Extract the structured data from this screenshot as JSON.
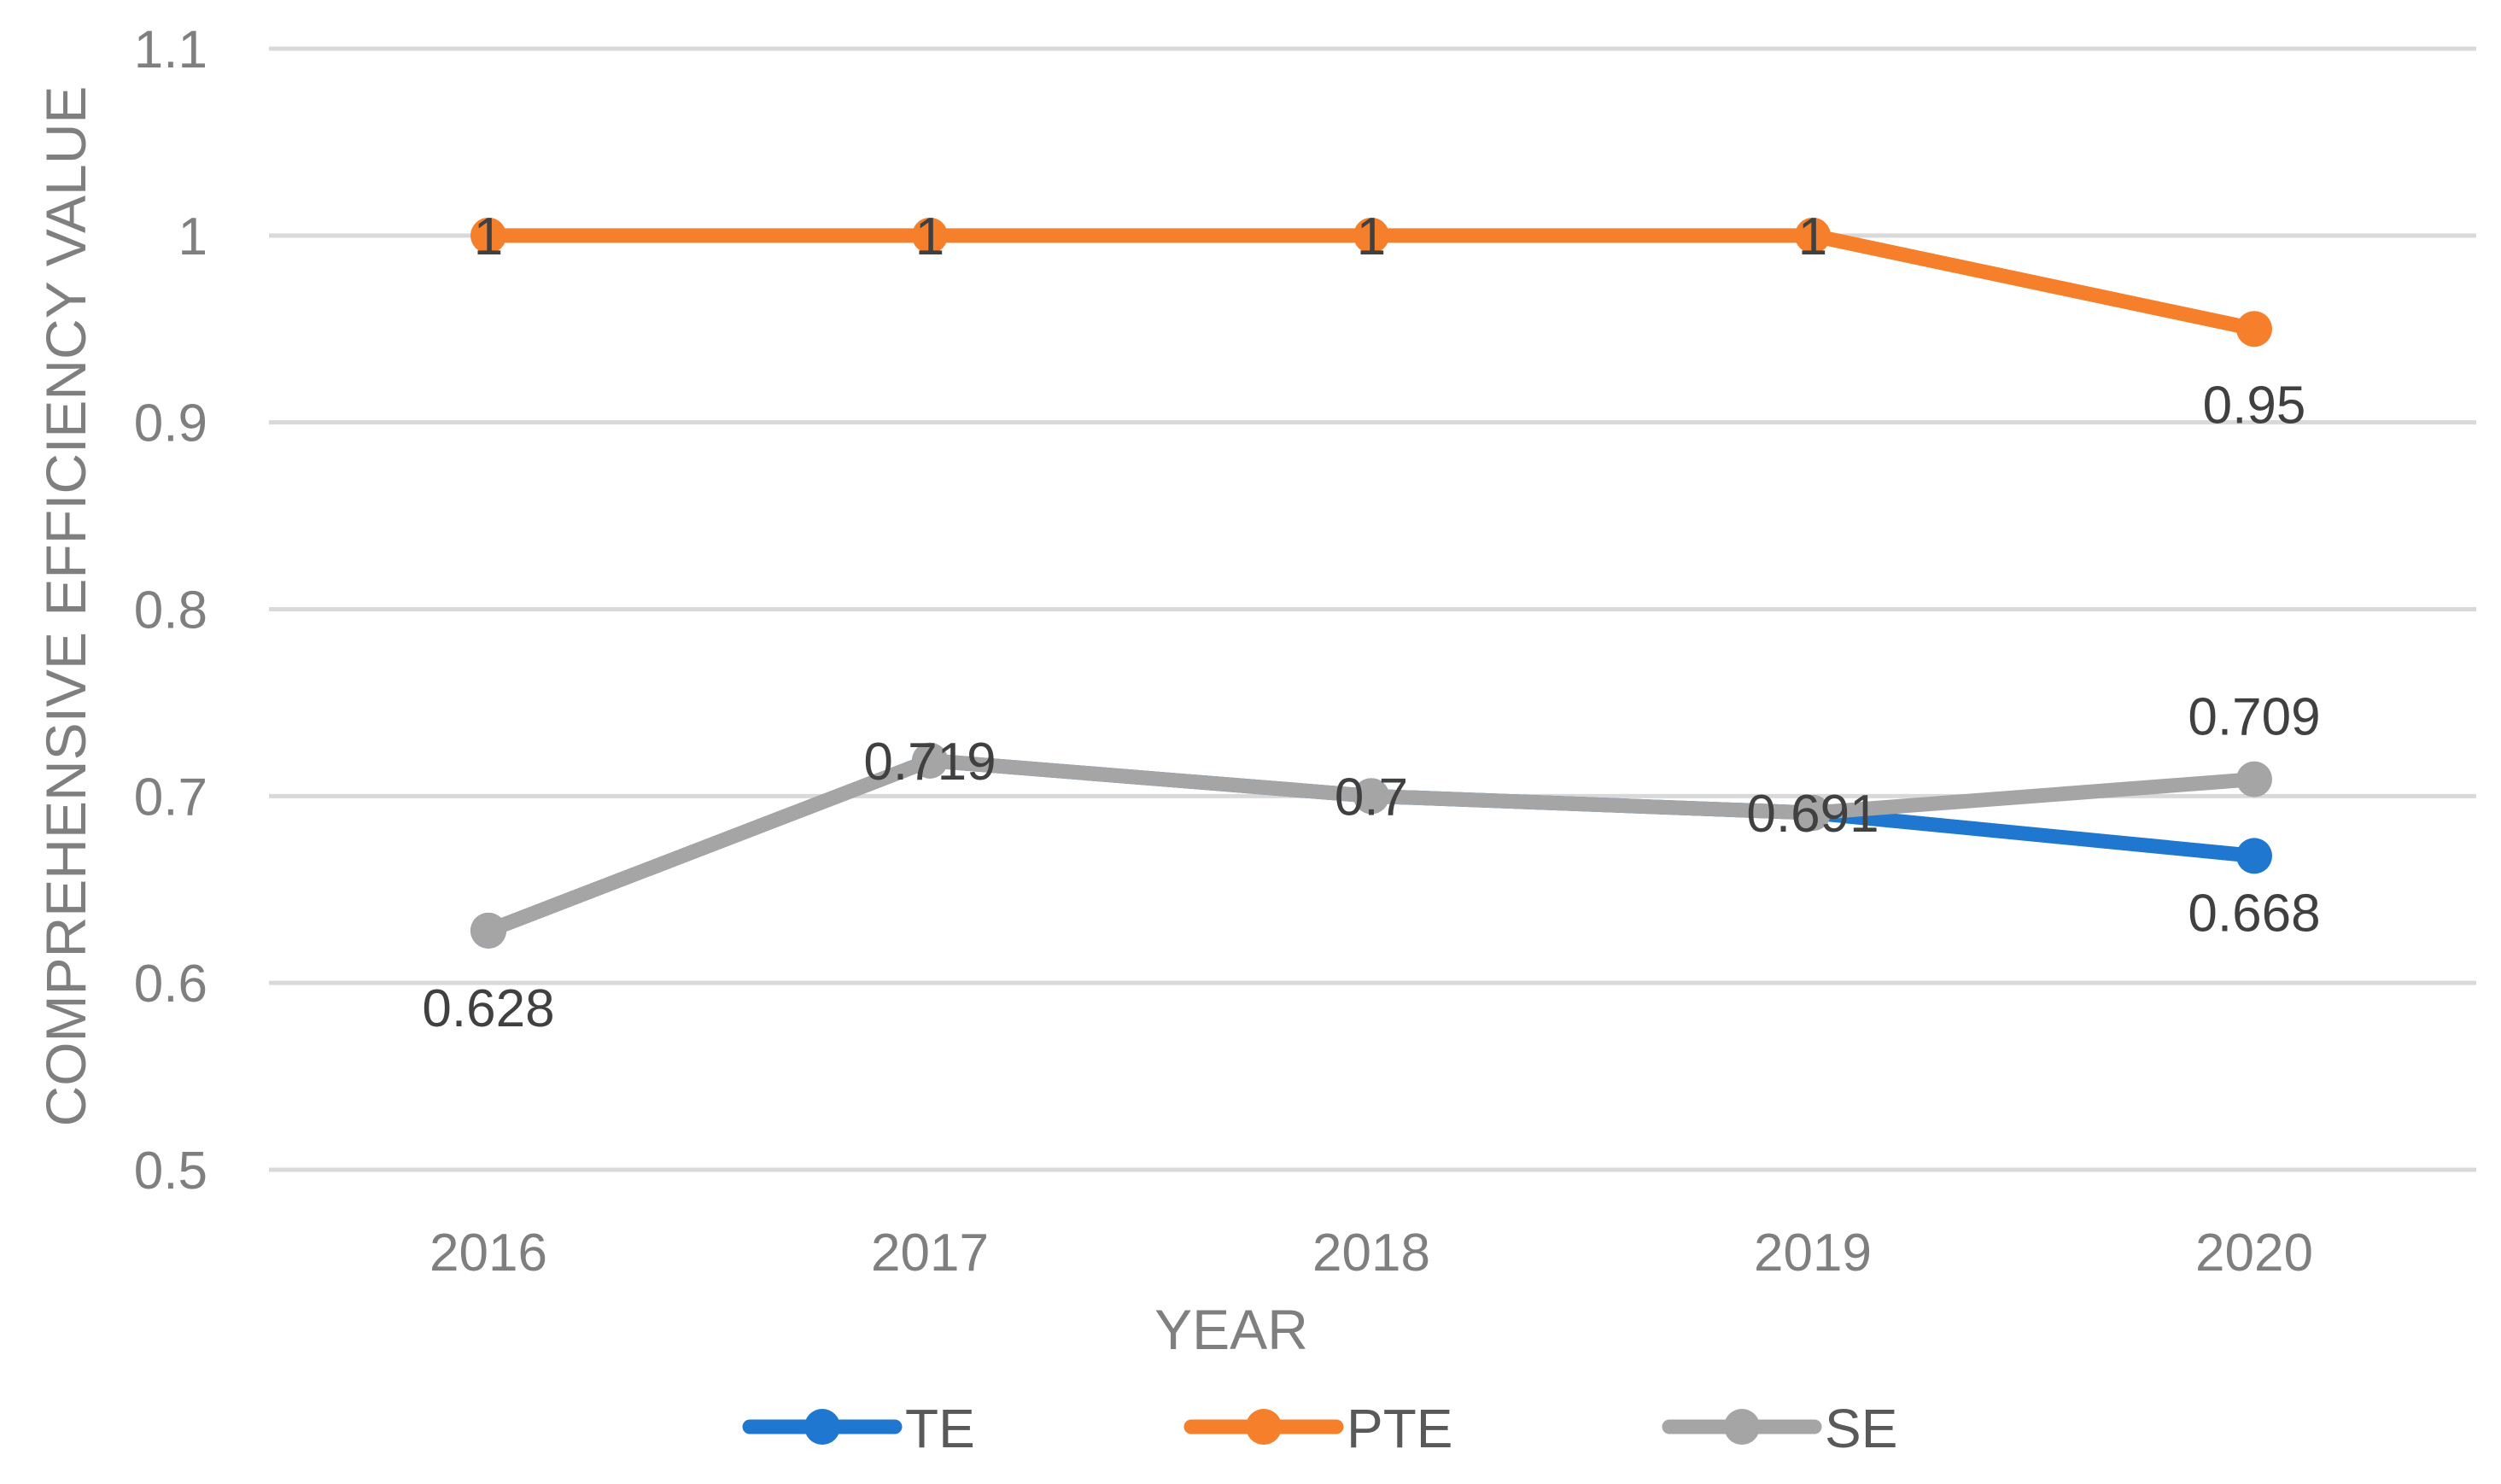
{
  "chart_data": {
    "type": "line",
    "title": "",
    "xlabel": "YEAR",
    "ylabel": "COMPREHENSIVE EFFICIENCY VALUE",
    "categories": [
      "2016",
      "2017",
      "2018",
      "2019",
      "2020"
    ],
    "ylim": [
      0.5,
      1.1
    ],
    "yticks": [
      "0.5",
      "0.6",
      "0.7",
      "0.8",
      "0.9",
      "1",
      "1.1"
    ],
    "grid": true,
    "legend_position": "bottom",
    "series": [
      {
        "name": "TE",
        "color": "#1f77d0",
        "values": [
          0.628,
          0.719,
          0.7,
          0.691,
          0.668
        ],
        "labels": [
          null,
          null,
          null,
          null,
          "0.668"
        ]
      },
      {
        "name": "PTE",
        "color": "#f57f2a",
        "values": [
          1,
          1,
          1,
          1,
          0.95
        ],
        "labels": [
          "1",
          "1",
          "1",
          "1",
          "0.95"
        ]
      },
      {
        "name": "SE",
        "color": "#a5a5a5",
        "values": [
          0.628,
          0.719,
          0.7,
          0.691,
          0.709
        ],
        "labels": [
          "0.628",
          "0.719",
          "0.7",
          "0.691",
          "0.709"
        ]
      }
    ]
  }
}
